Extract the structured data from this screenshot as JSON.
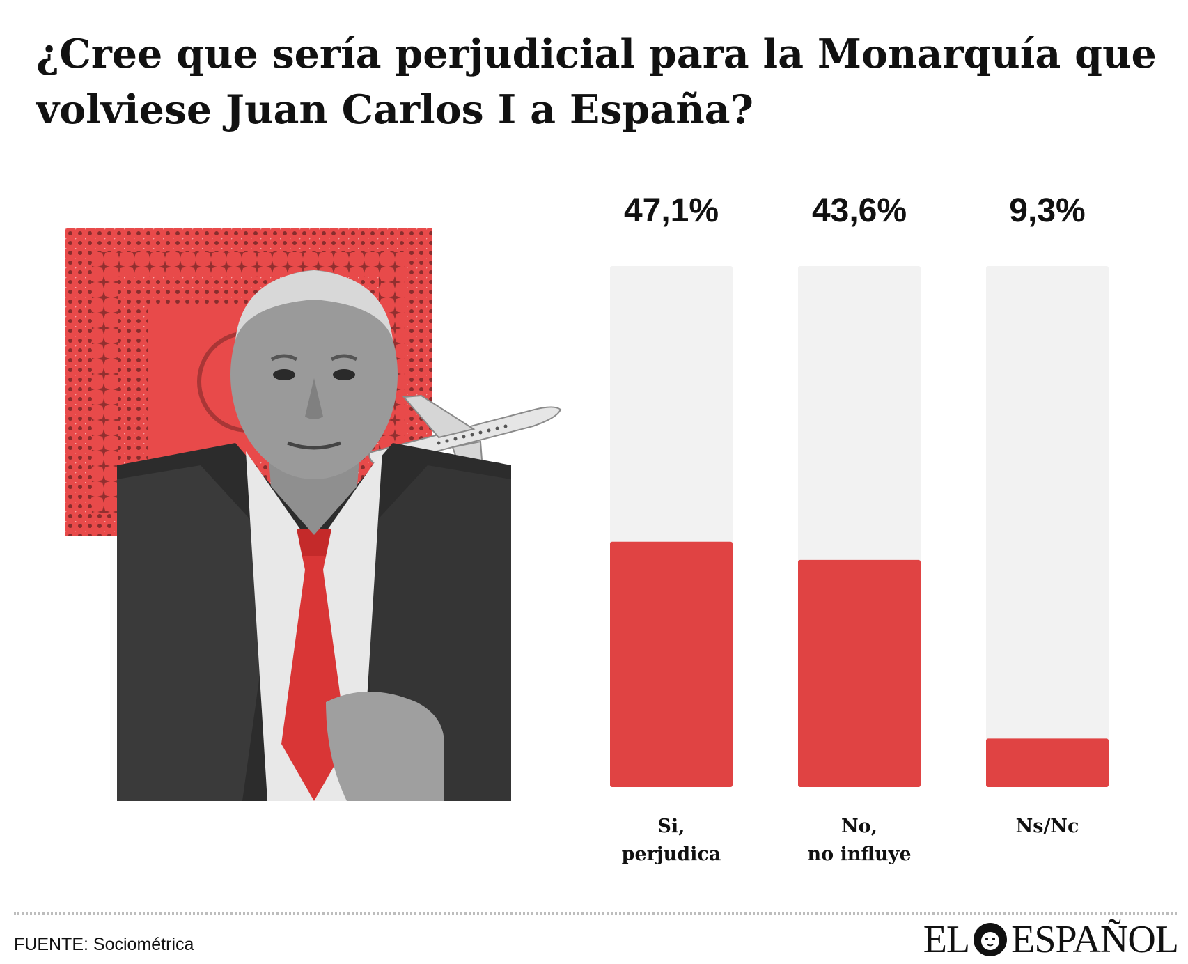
{
  "title": "¿Cree que sería perjudicial para la Monarquía que volviese Juan Carlos I a España?",
  "colors": {
    "bar_fill": "#e04343",
    "bar_track": "#f2f2f2",
    "carpet": "#e84a4a"
  },
  "chart_data": {
    "type": "bar",
    "title": "¿Cree que sería perjudicial para la Monarquía que volviese Juan Carlos I a España?",
    "categories": [
      "Si, perjudica",
      "No, no influye",
      "Ns/Nc"
    ],
    "category_lines": [
      [
        "Si,",
        "perjudica"
      ],
      [
        "No,",
        "no influye"
      ],
      [
        "Ns/Nc"
      ]
    ],
    "values": [
      47.1,
      43.6,
      9.3
    ],
    "value_labels": [
      "47,1%",
      "43,6%",
      "9,3%"
    ],
    "ylim": [
      0,
      100
    ],
    "grid": false,
    "legend": "none"
  },
  "footer": {
    "source_prefix": "FUENTE:",
    "source_name": "Sociométrica",
    "logo_left": "EL",
    "logo_right": "ESPAÑOL"
  },
  "icons": [
    "lion-logo-icon",
    "airplane-icon"
  ]
}
